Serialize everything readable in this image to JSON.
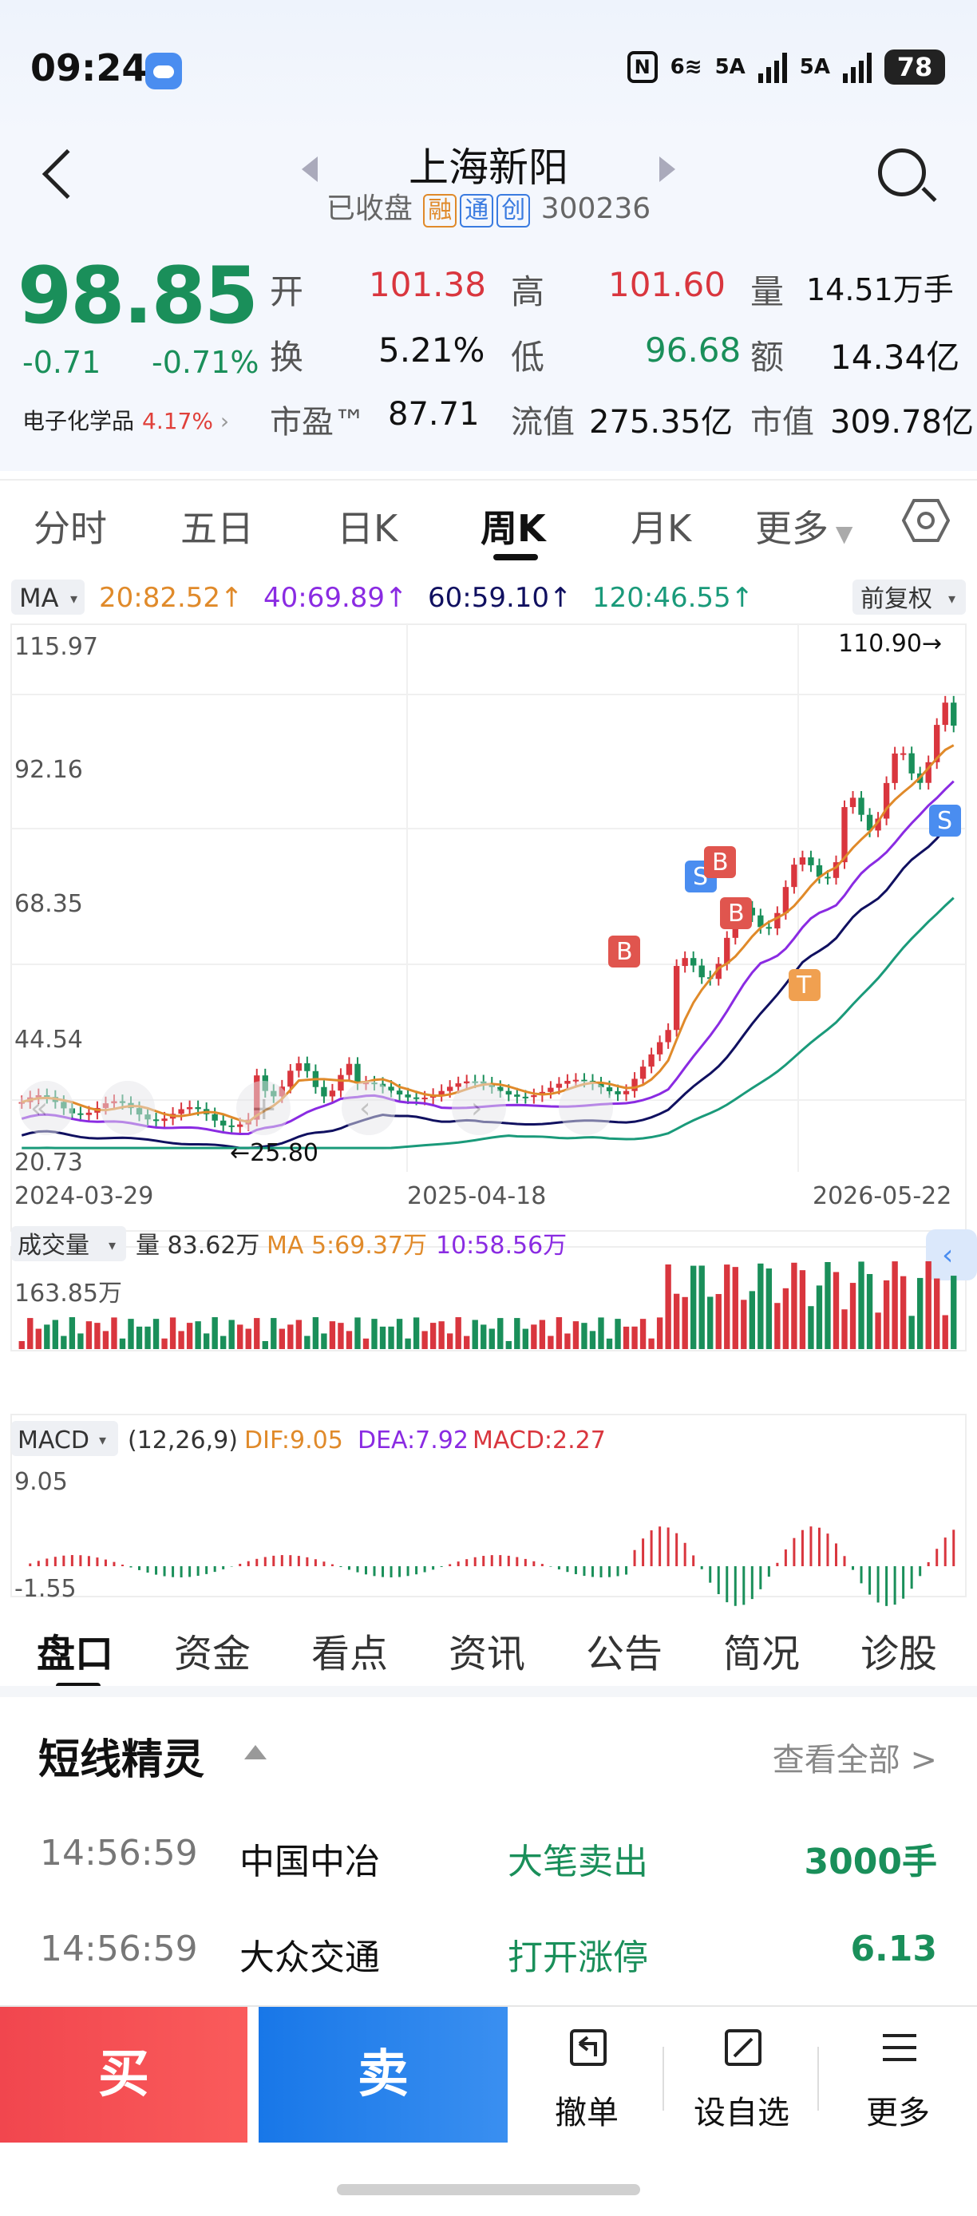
{
  "status_bar": {
    "time": "09:24",
    "net_wifi": "6",
    "sig1": "5A",
    "sig2": "5A",
    "battery": "78"
  },
  "header": {
    "stock_name": "上海新阳",
    "market_status": "已收盘",
    "tag_margin": "融",
    "tag_connect": "通",
    "tag_chinext": "创",
    "code": "300236"
  },
  "quote": {
    "price": "98.85",
    "change": "-0.71",
    "change_pct": "-0.71%",
    "sector_name": "电子化学品",
    "sector_pct": "4.17%",
    "open_label": "开",
    "open": "101.38",
    "high_label": "高",
    "high": "101.60",
    "vol_label": "量",
    "vol": "14.51万手",
    "turnover_label": "换",
    "turnover": "5.21%",
    "low_label": "低",
    "low": "96.68",
    "amount_label": "额",
    "amount": "14.34亿",
    "pe_label": "市盈™",
    "pe": "87.71",
    "float_label": "流值",
    "float_cap": "275.35亿",
    "mcap_label": "市值",
    "mcap": "309.78亿"
  },
  "tabs": [
    "分时",
    "五日",
    "日K",
    "周K",
    "月K",
    "更多"
  ],
  "chart_data": {
    "type": "candlestick",
    "period": "周K",
    "ma_selector": "MA",
    "adjust": "前复权",
    "ma_legend": [
      {
        "text": "20:82.52↑",
        "color": "#e08a2a"
      },
      {
        "text": "40:69.89↑",
        "color": "#8a2be2"
      },
      {
        "text": "60:59.10↑",
        "color": "#101060"
      },
      {
        "text": "120:46.55↑",
        "color": "#1a9a7a"
      }
    ],
    "y_ticks": [
      "115.97",
      "92.16",
      "68.35",
      "44.54",
      "20.73"
    ],
    "y_range": [
      20.73,
      115.97
    ],
    "x_ticks": [
      "2024-03-29",
      "2025-04-18",
      "2026-05-22"
    ],
    "max_label": "110.90→",
    "max_value": 110.9,
    "min_label": "←25.80",
    "min_value": 25.8,
    "signal_marks": [
      "B",
      "S",
      "B",
      "B",
      "T",
      "S"
    ],
    "volume": {
      "selector": "成交量",
      "legend_vol": "量 83.62万",
      "legend_ma5": "MA 5:69.37万",
      "legend_ma10": "10:58.56万",
      "max_label": "163.85万"
    },
    "macd": {
      "selector": "MACD",
      "params": "(12,26,9)",
      "dif": "DIF:9.05",
      "dea": "DEA:7.92",
      "macd": "MACD:2.27",
      "top_label": "9.05",
      "bottom_label": "-1.55"
    }
  },
  "bottom_tabs": [
    "盘口",
    "资金",
    "看点",
    "资讯",
    "公告",
    "简况",
    "诊股"
  ],
  "spirit": {
    "title": "短线精灵",
    "view_all": "查看全部 >",
    "rows": [
      {
        "time": "14:56:59",
        "name": "中国中冶",
        "event": "大笔卖出",
        "value": "3000手"
      },
      {
        "time": "14:56:59",
        "name": "大众交通",
        "event": "打开涨停",
        "value": "6.13"
      }
    ]
  },
  "tradebar": {
    "buy": "买",
    "sell": "卖",
    "cancel": "撤单",
    "watch": "设自选",
    "more": "更多"
  },
  "colors": {
    "up": "#d9363e",
    "down": "#1a8f5a",
    "buy": "#f1464e",
    "sell": "#1877e8"
  }
}
